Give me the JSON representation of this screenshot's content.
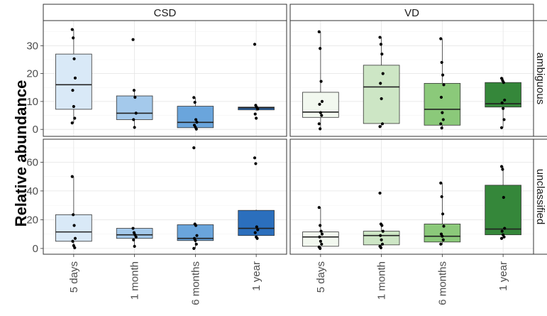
{
  "chart_data": {
    "type": "box",
    "ylabel": "Relative abundance",
    "categories": [
      "5 days",
      "1 month",
      "6 months",
      "1 year"
    ],
    "columns": [
      "CSD",
      "VD"
    ],
    "rows": [
      "ambiguous",
      "unclassified"
    ],
    "grid": true,
    "colors": {
      "CSD": [
        "#d9e9f7",
        "#a4c9eb",
        "#6aa5dc",
        "#2b6fbd"
      ],
      "VD": [
        "#f2f8ef",
        "#cde6c5",
        "#8bc97a",
        "#35873a"
      ]
    },
    "panels": [
      {
        "row": "ambiguous",
        "column": "CSD",
        "ylim": [
          -2.5,
          39
        ],
        "yticks": [
          0,
          10,
          20,
          30
        ],
        "boxes": [
          {
            "q1": 7.2,
            "median": 16.0,
            "q3": 27.0,
            "whisker_low": 2.3,
            "whisker_high": 35.8,
            "points": [
              35.8,
              32.8,
              25.3,
              18.4,
              14.0,
              8.2,
              4.0,
              2.3
            ]
          },
          {
            "q1": 3.5,
            "median": 5.8,
            "q3": 12.0,
            "whisker_low": 0.7,
            "whisker_high": 14.0,
            "points": [
              32.2,
              14.0,
              11.5,
              5.8,
              3.5,
              0.7
            ]
          },
          {
            "q1": 0.6,
            "median": 2.5,
            "q3": 8.3,
            "whisker_low": 0.0,
            "whisker_high": 11.4,
            "points": [
              11.4,
              9.7,
              3.5,
              2.6,
              1.5,
              0.8,
              0.1
            ]
          },
          {
            "q1": 7.0,
            "median": 7.7,
            "q3": 8.0,
            "whisker_low": 6.6,
            "whisker_high": 8.6,
            "points": [
              30.5,
              8.6,
              7.9,
              7.3,
              5.5,
              4.0
            ]
          }
        ]
      },
      {
        "row": "ambiguous",
        "column": "VD",
        "ylim": [
          -2.5,
          39
        ],
        "yticks": [
          0,
          10,
          20,
          30
        ],
        "boxes": [
          {
            "q1": 4.3,
            "median": 6.2,
            "q3": 13.3,
            "whisker_low": 0.0,
            "whisker_high": 35.0,
            "points": [
              35.0,
              29.0,
              17.2,
              10.0,
              9.0,
              6.0,
              5.0,
              2.0,
              0.2
            ]
          },
          {
            "q1": 2.1,
            "median": 15.2,
            "q3": 23.0,
            "whisker_low": 0.8,
            "whisker_high": 33.0,
            "points": [
              33.0,
              30.5,
              27.0,
              20.0,
              16.5,
              11.0,
              2.0,
              1.0
            ]
          },
          {
            "q1": 1.5,
            "median": 7.2,
            "q3": 16.5,
            "whisker_low": 0.2,
            "whisker_high": 32.5,
            "points": [
              32.5,
              24.0,
              19.5,
              16.0,
              11.5,
              6.0,
              3.5,
              2.0,
              0.5
            ]
          },
          {
            "q1": 8.0,
            "median": 9.2,
            "q3": 16.8,
            "whisker_low": 0.6,
            "whisker_high": 18.5,
            "points": [
              18.3,
              17.5,
              16.8,
              10.5,
              9.5,
              7.5,
              3.5,
              0.6
            ]
          }
        ]
      },
      {
        "row": "unclassified",
        "column": "CSD",
        "ylim": [
          -4,
          76
        ],
        "yticks": [
          0,
          20,
          40,
          60
        ],
        "boxes": [
          {
            "q1": 5.0,
            "median": 11.5,
            "q3": 23.5,
            "whisker_low": 0.5,
            "whisker_high": 50.0,
            "points": [
              50.0,
              23.5,
              16.0,
              7.0,
              5.0,
              2.0,
              0.5
            ]
          },
          {
            "q1": 7.0,
            "median": 9.5,
            "q3": 14.0,
            "whisker_low": 1.5,
            "whisker_high": 14.0,
            "points": [
              14.0,
              11.0,
              9.5,
              8.0,
              6.0,
              1.5
            ]
          },
          {
            "q1": 5.5,
            "median": 7.0,
            "q3": 16.5,
            "whisker_low": 0.0,
            "whisker_high": 17.0,
            "points": [
              70.0,
              17.0,
              16.0,
              9.0,
              7.0,
              5.5,
              3.0,
              0.0
            ]
          },
          {
            "q1": 9.0,
            "median": 14.0,
            "q3": 26.5,
            "whisker_low": 7.0,
            "whisker_high": 27.0,
            "points": [
              63.0,
              59.0,
              15.0,
              13.0,
              11.0,
              8.0,
              7.0
            ]
          }
        ]
      },
      {
        "row": "unclassified",
        "column": "VD",
        "ylim": [
          -4,
          76
        ],
        "yticks": [
          0,
          20,
          40,
          60
        ],
        "boxes": [
          {
            "q1": 1.5,
            "median": 8.0,
            "q3": 11.5,
            "whisker_low": 0.0,
            "whisker_high": 28.5,
            "points": [
              28.5,
              16.0,
              12.0,
              10.0,
              8.0,
              5.0,
              3.0,
              1.0,
              0.0
            ]
          },
          {
            "q1": 2.5,
            "median": 9.0,
            "q3": 12.0,
            "whisker_low": 0.5,
            "whisker_high": 17.0,
            "points": [
              38.5,
              17.0,
              16.0,
              12.0,
              9.0,
              6.0,
              3.0,
              1.5,
              0.5
            ]
          },
          {
            "q1": 4.5,
            "median": 8.5,
            "q3": 17.0,
            "whisker_low": 2.5,
            "whisker_high": 45.5,
            "points": [
              45.5,
              36.0,
              24.0,
              15.5,
              10.0,
              8.5,
              6.0,
              3.0
            ]
          },
          {
            "q1": 9.5,
            "median": 13.5,
            "q3": 44.0,
            "whisker_low": 7.0,
            "whisker_high": 57.0,
            "points": [
              57.0,
              55.0,
              35.5,
              14.0,
              12.0,
              9.5,
              8.0,
              7.0
            ]
          }
        ]
      }
    ]
  }
}
